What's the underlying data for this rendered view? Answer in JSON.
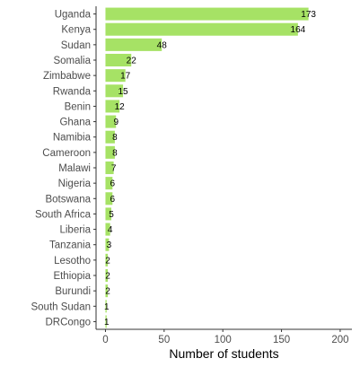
{
  "chart_data": {
    "type": "bar",
    "orientation": "horizontal",
    "categories": [
      "Uganda",
      "Kenya",
      "Sudan",
      "Somalia",
      "Zimbabwe",
      "Rwanda",
      "Benin",
      "Ghana",
      "Namibia",
      "Cameroon",
      "Malawi",
      "Nigeria",
      "Botswana",
      "South Africa",
      "Liberia",
      "Tanzania",
      "Lesotho",
      "Ethiopia",
      "Burundi",
      "South Sudan",
      "DRCongo"
    ],
    "values": [
      173,
      164,
      48,
      22,
      17,
      15,
      12,
      9,
      8,
      8,
      7,
      6,
      6,
      5,
      4,
      3,
      2,
      2,
      2,
      1,
      1
    ],
    "data_labels": [
      "173",
      "164",
      "48",
      "22",
      "17",
      "15",
      "12",
      "9",
      "8",
      "8",
      "7",
      "6",
      "6",
      "5",
      "4",
      "3",
      "2",
      "2",
      "2",
      "1",
      "1"
    ],
    "title": "",
    "xlabel": "Number of students",
    "ylabel": "",
    "xlim": [
      -8,
      210
    ],
    "xticks": [
      0,
      50,
      100,
      150,
      200
    ],
    "xtick_labels": [
      "0",
      "50",
      "100",
      "150",
      "200"
    ],
    "grid": false,
    "legend": "none",
    "bar_color": "#a6e265",
    "axis_color": "#333333"
  }
}
